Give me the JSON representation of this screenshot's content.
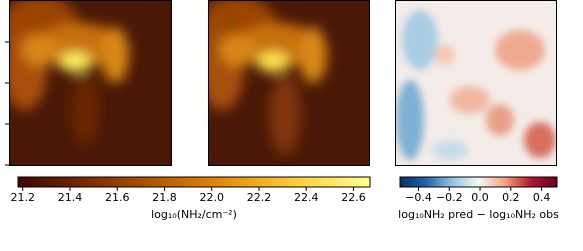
{
  "chart_data": [
    {
      "type": "colorbar",
      "label": "log₁₀(NH₂/cm⁻²)",
      "colors": [
        "#3a0a00",
        "#7a2a00",
        "#b85a00",
        "#e89010",
        "#ffd040",
        "#ffff90"
      ],
      "xlim": [
        21.18,
        22.67
      ],
      "xticks": [
        21.2,
        21.4,
        21.6,
        21.8,
        {
          "value": 22,
          "label": "22.0"
        },
        22.2,
        22.4,
        22.6
      ]
    },
    {
      "type": "colorbar",
      "label": "log₁₀NH₂ pred − log₁₀NH₂ obs",
      "colors": [
        "#053061",
        "#2166ac",
        "#92c5de",
        "#f7f7f7",
        "#f4a582",
        "#b2182b",
        "#67001f"
      ],
      "xlim": [
        -0.52,
        0.5
      ],
      "xticks": [
        {
          "value": -0.4,
          "label": "−0.4"
        },
        {
          "value": -0.2,
          "label": "−0.2"
        },
        {
          "value": 0,
          "label": "0.0"
        },
        0.2,
        0.4
      ]
    }
  ]
}
